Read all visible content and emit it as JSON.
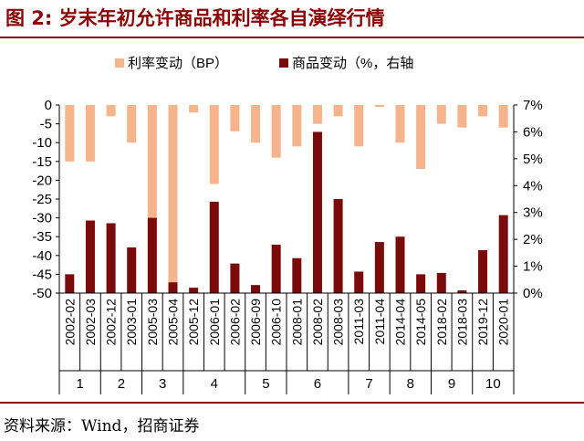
{
  "title": "图 2:  岁末年初允许商品和利率各自演绎行情",
  "source": "资料来源：Wind，招商证券",
  "colors": {
    "rate": "#f6b48c",
    "commodity": "#7b0a0a",
    "accent": "#8b0000"
  },
  "chart_data": {
    "type": "bar",
    "legend_position": "top-center",
    "grid": false,
    "series": [
      {
        "name": "利率变动（BP）",
        "axis": "left",
        "values": [
          -15,
          -15,
          -3,
          -10,
          -48,
          -49,
          -2,
          -21,
          -7,
          -10,
          -14,
          -11,
          -5,
          -3,
          -11,
          -0.5,
          -10,
          -17,
          -5,
          -6,
          -3,
          -6
        ]
      },
      {
        "name": "商品变动（%，右轴",
        "axis": "right",
        "values": [
          0.7,
          2.7,
          2.6,
          1.7,
          2.8,
          0.4,
          0.2,
          3.4,
          1.1,
          0.3,
          1.8,
          1.3,
          6.0,
          3.5,
          0.8,
          1.9,
          2.1,
          0.7,
          0.75,
          0.1,
          1.6,
          2.9
        ]
      }
    ],
    "categories": [
      "2002-02",
      "2002-03",
      "2002-12",
      "2003-01",
      "2005-03",
      "2005-04",
      "2005-12",
      "2006-01",
      "2006-02",
      "2006-09",
      "2006-10",
      "2008-01",
      "2008-02",
      "2008-03",
      "2011-03",
      "2011-04",
      "2014-04",
      "2014-05",
      "2018-02",
      "2018-03",
      "2019-12",
      "2020-01"
    ],
    "groups": [
      {
        "label": "1",
        "count": 2
      },
      {
        "label": "2",
        "count": 2
      },
      {
        "label": "3",
        "count": 2
      },
      {
        "label": "4",
        "count": 3
      },
      {
        "label": "5",
        "count": 2
      },
      {
        "label": "6",
        "count": 3
      },
      {
        "label": "7",
        "count": 2
      },
      {
        "label": "8",
        "count": 2
      },
      {
        "label": "9",
        "count": 2
      },
      {
        "label": "10",
        "count": 2
      }
    ],
    "y_left": {
      "min": -50,
      "max": 0,
      "step": 5,
      "ticks": [
        "0",
        "-5",
        "-10",
        "-15",
        "-20",
        "-25",
        "-30",
        "-35",
        "-40",
        "-45",
        "-50"
      ]
    },
    "y_right": {
      "min": 0,
      "max": 7,
      "step": 1,
      "ticks": [
        "0%",
        "1%",
        "2%",
        "3%",
        "4%",
        "5%",
        "6%",
        "7%"
      ]
    }
  }
}
